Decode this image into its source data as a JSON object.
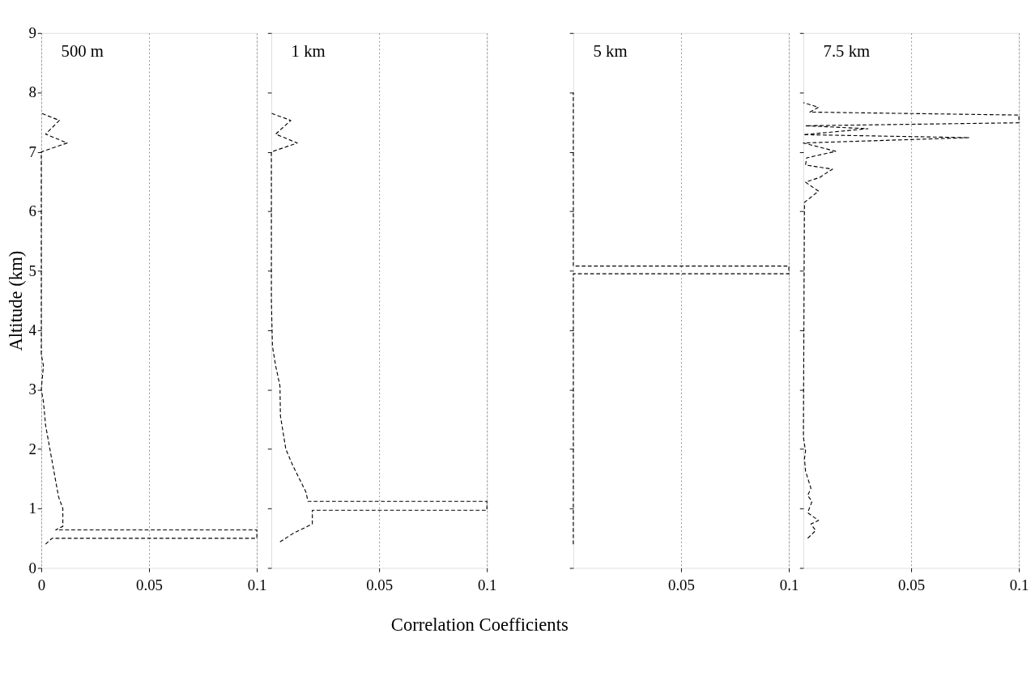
{
  "chart_data": [
    {
      "type": "line",
      "title": "500 m",
      "ylabel": "Altitude (km)",
      "xlim": [
        0,
        0.1
      ],
      "ylim": [
        0,
        9
      ],
      "xticks": [
        0,
        0.05,
        0.1
      ],
      "yticks": [
        0,
        1,
        2,
        3,
        4,
        5,
        6,
        7,
        8,
        9
      ],
      "grid": "x",
      "line_style": "dashed",
      "tick_labels": "xy",
      "series": [
        {
          "color": "#000000",
          "x": [
            0.002,
            0.005,
            0.1,
            0.1,
            0.0067,
            0.01,
            0.01,
            0.008,
            0.006,
            0.004,
            0.002,
            0.001,
            0.0,
            0.001,
            0.0,
            0.0,
            0.0,
            0.012,
            0.002,
            0.0084,
            0.0
          ],
          "values": [
            0.4,
            0.5,
            0.5,
            0.64,
            0.64,
            0.7,
            1.0,
            1.2,
            1.6,
            2.0,
            2.4,
            2.8,
            3.0,
            3.4,
            3.6,
            5.0,
            7.0,
            7.15,
            7.3,
            7.53,
            7.65
          ]
        }
      ]
    },
    {
      "type": "line",
      "title": "1 km",
      "xlabel": "Correlation Coefficients",
      "xlim": [
        0,
        0.1
      ],
      "ylim": [
        0,
        9
      ],
      "xticks": [
        0.05,
        0.1
      ],
      "yticks": [
        0,
        1,
        2,
        3,
        4,
        5,
        6,
        7,
        8,
        9
      ],
      "grid": "x",
      "line_style": "dashed",
      "tick_labels": "x",
      "series": [
        {
          "color": "#000000",
          "x": [
            0.004,
            0.0105,
            0.019,
            0.019,
            0.1,
            0.1,
            0.017,
            0.016,
            0.01,
            0.0067,
            0.0042,
            0.004,
            0.002,
            0.0005,
            0.0,
            0.0,
            0.012,
            0.002,
            0.009,
            0.0
          ],
          "values": [
            0.44,
            0.59,
            0.74,
            0.97,
            0.97,
            1.12,
            1.12,
            1.28,
            1.72,
            2.0,
            2.56,
            3.06,
            3.4,
            3.73,
            4.5,
            7.0,
            7.15,
            7.3,
            7.53,
            7.65
          ]
        }
      ]
    },
    {
      "type": "line",
      "title": "5 km",
      "xlim": [
        0,
        0.1
      ],
      "ylim": [
        0,
        9
      ],
      "xticks": [
        0.05,
        0.1
      ],
      "yticks": [
        0,
        1,
        2,
        3,
        4,
        5,
        6,
        7,
        8,
        9
      ],
      "grid": "x",
      "line_style": "dashed",
      "tick_labels": "x",
      "series": [
        {
          "color": "#000000",
          "x": [
            0.0,
            0.0,
            0.1,
            0.1,
            0.0,
            0.0
          ],
          "values": [
            0.4,
            4.95,
            4.95,
            5.08,
            5.08,
            8.0
          ]
        }
      ]
    },
    {
      "type": "line",
      "title": "7.5 km",
      "xlim": [
        0,
        0.1
      ],
      "ylim": [
        0,
        9
      ],
      "xticks": [
        0.05,
        0.1
      ],
      "yticks": [
        0,
        1,
        2,
        3,
        4,
        5,
        6,
        7,
        8,
        9
      ],
      "grid": "x",
      "line_style": "dashed",
      "tick_labels": "x",
      "series": [
        {
          "color": "#000000",
          "x": [
            0.002,
            0.0057,
            0.0035,
            0.007,
            0.002,
            0.004,
            0.002,
            0.0035,
            0.001,
            0.0005,
            0.001,
            0.0,
            0.0005,
            0.007,
            0.001,
            0.0075,
            0.0135,
            0.001,
            0.0015,
            0.015,
            0.0,
            0.077,
            0.0,
            0.03,
            0.001,
            0.1,
            0.1,
            0.003,
            0.007,
            0.0
          ],
          "values": [
            0.5,
            0.63,
            0.74,
            0.8,
            0.93,
            1.12,
            1.22,
            1.34,
            1.63,
            1.84,
            1.97,
            2.2,
            6.15,
            6.34,
            6.49,
            6.57,
            6.71,
            6.78,
            6.9,
            7.01,
            7.15,
            7.24,
            7.29,
            7.39,
            7.44,
            7.49,
            7.62,
            7.67,
            7.75,
            7.83
          ]
        }
      ]
    }
  ]
}
